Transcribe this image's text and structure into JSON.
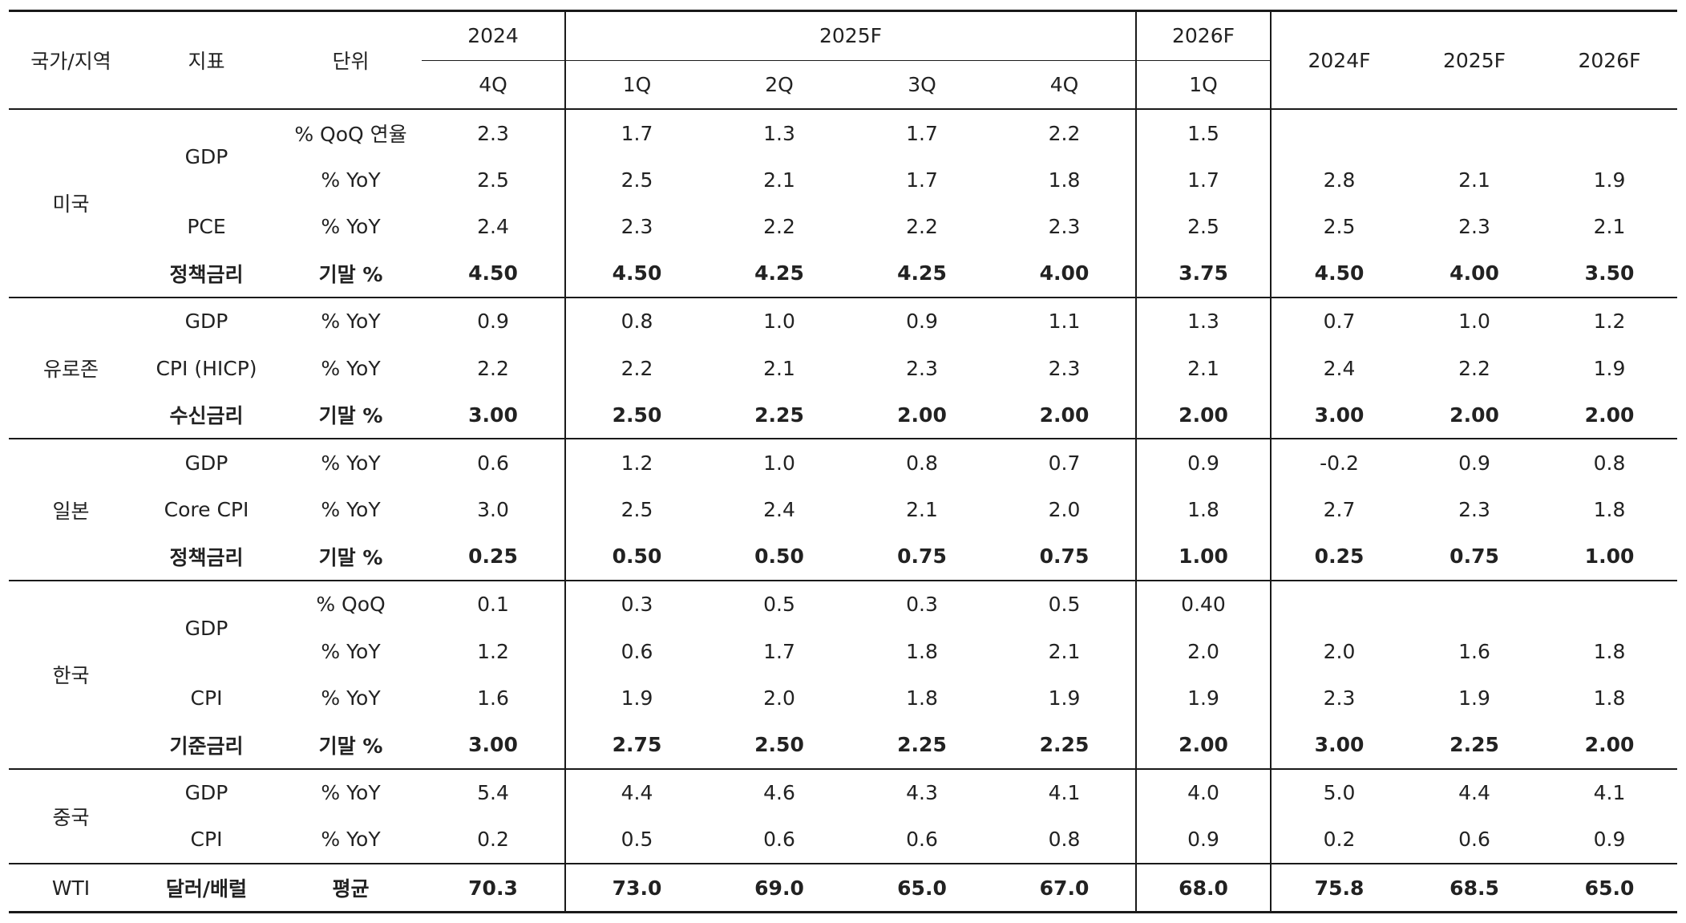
{
  "header": {
    "country_label": "국가/지역",
    "indicator_label": "지표",
    "unit_label": "단위",
    "year_2024": "2024",
    "year_2025F": "2025F",
    "year_2026F": "2026F",
    "annual_2024F": "2024F",
    "annual_2025F": "2025F",
    "annual_2026F": "2026F",
    "q_2024_4Q": "4Q",
    "q_2025_1Q": "1Q",
    "q_2025_2Q": "2Q",
    "q_2025_3Q": "3Q",
    "q_2025_4Q": "4Q",
    "q_2026_1Q": "1Q"
  },
  "table": {
    "rows": [
      {
        "country": "미국",
        "indicator": "GDP",
        "unit": "% QoQ 연율",
        "values": [
          "2.3",
          "1.7",
          "1.3",
          "1.7",
          "2.2",
          "1.5",
          "",
          "",
          ""
        ]
      },
      {
        "country": "",
        "indicator": "",
        "unit": "% YoY",
        "values": [
          "2.5",
          "2.5",
          "2.1",
          "1.7",
          "1.8",
          "1.7",
          "2.8",
          "2.1",
          "1.9"
        ]
      },
      {
        "country": "",
        "indicator": "PCE",
        "unit": "% YoY",
        "values": [
          "2.4",
          "2.3",
          "2.2",
          "2.2",
          "2.3",
          "2.5",
          "2.5",
          "2.3",
          "2.1"
        ]
      },
      {
        "country": "",
        "indicator": "정책금리",
        "unit": "기말 %",
        "values": [
          "4.50",
          "4.50",
          "4.25",
          "4.25",
          "4.00",
          "3.75",
          "4.50",
          "4.00",
          "3.50"
        ]
      },
      {
        "country": "유로존",
        "indicator": "GDP",
        "unit": "% YoY",
        "values": [
          "0.9",
          "0.8",
          "1.0",
          "0.9",
          "1.1",
          "1.3",
          "0.7",
          "1.0",
          "1.2"
        ]
      },
      {
        "country": "",
        "indicator": "CPI (HICP)",
        "unit": "% YoY",
        "values": [
          "2.2",
          "2.2",
          "2.1",
          "2.3",
          "2.3",
          "2.1",
          "2.4",
          "2.2",
          "1.9"
        ]
      },
      {
        "country": "",
        "indicator": "수신금리",
        "unit": "기말 %",
        "values": [
          "3.00",
          "2.50",
          "2.25",
          "2.00",
          "2.00",
          "2.00",
          "3.00",
          "2.00",
          "2.00"
        ]
      },
      {
        "country": "일본",
        "indicator": "GDP",
        "unit": "% YoY",
        "values": [
          "0.6",
          "1.2",
          "1.0",
          "0.8",
          "0.7",
          "0.9",
          "-0.2",
          "0.9",
          "0.8"
        ]
      },
      {
        "country": "",
        "indicator": "Core CPI",
        "unit": "% YoY",
        "values": [
          "3.0",
          "2.5",
          "2.4",
          "2.1",
          "2.0",
          "1.8",
          "2.7",
          "2.3",
          "1.8"
        ]
      },
      {
        "country": "",
        "indicator": "정책금리",
        "unit": "기말 %",
        "values": [
          "0.25",
          "0.50",
          "0.50",
          "0.75",
          "0.75",
          "1.00",
          "0.25",
          "0.75",
          "1.00"
        ]
      },
      {
        "country": "한국",
        "indicator": "GDP",
        "unit": "% QoQ",
        "values": [
          "0.1",
          "0.3",
          "0.5",
          "0.3",
          "0.5",
          "0.40",
          "",
          "",
          ""
        ]
      },
      {
        "country": "",
        "indicator": "",
        "unit": "% YoY",
        "values": [
          "1.2",
          "0.6",
          "1.7",
          "1.8",
          "2.1",
          "2.0",
          "2.0",
          "1.6",
          "1.8"
        ]
      },
      {
        "country": "",
        "indicator": "CPI",
        "unit": "% YoY",
        "values": [
          "1.6",
          "1.9",
          "2.0",
          "1.8",
          "1.9",
          "1.9",
          "2.3",
          "1.9",
          "1.8"
        ]
      },
      {
        "country": "",
        "indicator": "기준금리",
        "unit": "기말 %",
        "values": [
          "3.00",
          "2.75",
          "2.50",
          "2.25",
          "2.25",
          "2.00",
          "3.00",
          "2.25",
          "2.00"
        ]
      },
      {
        "country": "중국",
        "indicator": "GDP",
        "unit": "% YoY",
        "values": [
          "5.4",
          "4.4",
          "4.6",
          "4.3",
          "4.1",
          "4.0",
          "5.0",
          "4.4",
          "4.1"
        ]
      },
      {
        "country": "",
        "indicator": "CPI",
        "unit": "% YoY",
        "values": [
          "0.2",
          "0.5",
          "0.6",
          "0.6",
          "0.8",
          "0.9",
          "0.2",
          "0.6",
          "0.9"
        ]
      },
      {
        "country": "WTI",
        "indicator": "달러/배럴",
        "unit": "평균",
        "values": [
          "70.3",
          "73.0",
          "69.0",
          "65.0",
          "67.0",
          "68.0",
          "75.8",
          "68.5",
          "65.0"
        ]
      }
    ]
  }
}
